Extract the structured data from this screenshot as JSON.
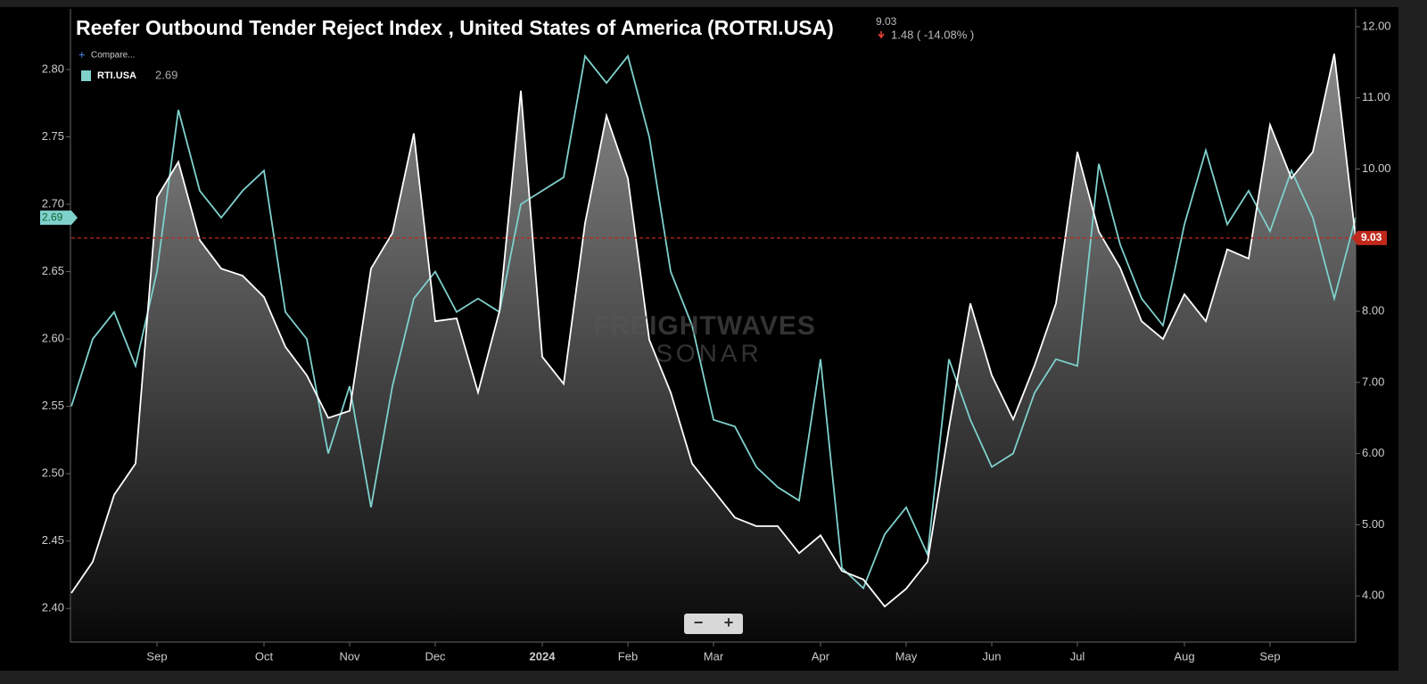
{
  "chart_data": {
    "type": "line",
    "change": "1.48 ( -14.08% )",
    "compare": "Compare...",
    "categories": [
      null,
      null,
      null,
      null,
      "Sep",
      null,
      null,
      null,
      null,
      "Oct",
      null,
      null,
      null,
      "Nov",
      null,
      null,
      null,
      "Dec",
      null,
      null,
      null,
      null,
      "2024",
      null,
      null,
      null,
      "Feb",
      null,
      null,
      null,
      "Mar",
      null,
      null,
      null,
      null,
      "Apr",
      null,
      null,
      null,
      "May",
      null,
      null,
      null,
      "Jun",
      null,
      null,
      null,
      "Jul",
      null,
      null,
      null,
      null,
      "Aug",
      null,
      null,
      null,
      "Sep",
      null,
      null,
      null,
      null
    ],
    "series": [
      {
        "name": "RTI.USA",
        "color": "#7fd1cc",
        "axis": "y",
        "values": [
          2.55,
          2.6,
          2.62,
          2.58,
          2.65,
          2.77,
          2.71,
          2.69,
          2.71,
          2.725,
          2.62,
          2.6,
          2.515,
          2.565,
          2.475,
          2.565,
          2.63,
          2.65,
          2.62,
          2.63,
          2.62,
          2.7,
          2.71,
          2.72,
          2.81,
          2.79,
          2.81,
          2.75,
          2.65,
          2.61,
          2.54,
          2.535,
          2.505,
          2.49,
          2.48,
          2.585,
          2.43,
          2.415,
          2.455,
          2.475,
          2.44,
          2.585,
          2.54,
          2.505,
          2.515,
          2.56,
          2.585,
          2.58,
          2.73,
          2.67,
          2.63,
          2.61,
          2.685,
          2.74,
          2.685,
          2.71,
          2.68,
          2.725,
          2.69,
          2.63,
          2.69
        ]
      },
      {
        "name": "Reefer Outbound Tender Reject Index , United States of America (ROTRI.USA)",
        "color": "#ffffff",
        "axis": "y2",
        "area": true,
        "marker_color": "#c0281c",
        "values": [
          4.04,
          4.48,
          5.42,
          5.86,
          9.6,
          10.1,
          9.0,
          8.6,
          8.5,
          8.2,
          7.5,
          7.1,
          6.5,
          6.6,
          8.6,
          9.1,
          10.5,
          7.86,
          7.9,
          6.86,
          8.0,
          11.1,
          7.36,
          6.98,
          9.24,
          10.75,
          9.87,
          7.6,
          6.86,
          5.86,
          5.48,
          5.1,
          4.98,
          4.98,
          4.6,
          4.85,
          4.35,
          4.23,
          3.85,
          4.1,
          4.48,
          6.36,
          8.11,
          7.1,
          6.48,
          7.24,
          8.11,
          10.24,
          9.12,
          8.61,
          7.86,
          7.61,
          8.24,
          7.86,
          8.87,
          8.74,
          10.62,
          9.87,
          10.24,
          11.62,
          9.03
        ]
      }
    ],
    "ylim": [
      2.375,
      2.845
    ],
    "yticks": [
      {
        "value": 2.4,
        "label": "2.40"
      },
      2.45,
      {
        "value": 2.5,
        "label": "2.50"
      },
      2.55,
      {
        "value": 2.6,
        "label": "2.60"
      },
      2.65,
      {
        "value": 2.7,
        "label": "2.70"
      },
      2.75,
      {
        "value": 2.8,
        "label": "2.80"
      }
    ],
    "y2lim": [
      3.35,
      12.25
    ],
    "y2ticks": [
      {
        "value": 4,
        "label": "4.00"
      },
      {
        "value": 5,
        "label": "5.00"
      },
      {
        "value": 6,
        "label": "6.00"
      },
      {
        "value": 7,
        "label": "7.00"
      },
      {
        "value": 8,
        "label": "8.00"
      },
      {
        "value": 9,
        "label": "9.00"
      },
      {
        "value": 10,
        "label": "10.00"
      },
      {
        "value": 11,
        "label": "11.00"
      },
      {
        "value": 12,
        "label": "12.00"
      }
    ],
    "grid": false
  },
  "ui": {
    "watermark": [
      "FREIGHTWAVES",
      "SONAR"
    ],
    "zoom": [
      "−",
      "+"
    ]
  }
}
